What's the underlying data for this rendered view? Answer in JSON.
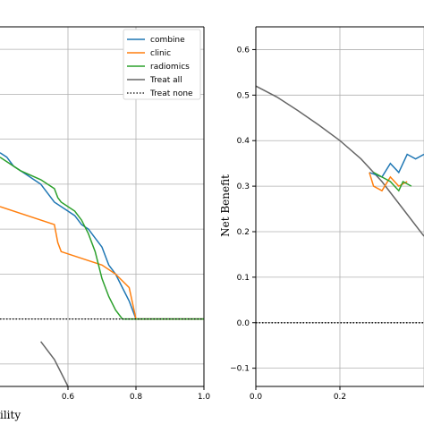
{
  "chart_data": [
    {
      "type": "line",
      "xlabel_visible": "ility",
      "ylabel": "",
      "xlim": [
        0.4,
        1.0
      ],
      "ylim": [
        -0.15,
        0.65
      ],
      "xticks": [
        "0.6",
        "0.8",
        "1.0"
      ],
      "grid": true,
      "legend_position": "top-right",
      "series": [
        {
          "name": "combine",
          "color": "#1f77b4",
          "x": [
            0.4,
            0.42,
            0.44,
            0.46,
            0.48,
            0.5,
            0.52,
            0.54,
            0.56,
            0.58,
            0.6,
            0.62,
            0.64,
            0.66,
            0.68,
            0.7,
            0.72,
            0.74,
            0.76,
            0.78,
            0.8,
            1.0
          ],
          "y": [
            0.37,
            0.36,
            0.34,
            0.33,
            0.32,
            0.31,
            0.3,
            0.28,
            0.26,
            0.25,
            0.24,
            0.23,
            0.21,
            0.2,
            0.18,
            0.16,
            0.12,
            0.1,
            0.07,
            0.04,
            0.0,
            0.0
          ]
        },
        {
          "name": "clinic",
          "color": "#ff7f0e",
          "x": [
            0.4,
            0.56,
            0.57,
            0.58,
            0.62,
            0.66,
            0.7,
            0.74,
            0.78,
            0.8,
            1.0
          ],
          "y": [
            0.25,
            0.21,
            0.17,
            0.15,
            0.14,
            0.13,
            0.12,
            0.1,
            0.07,
            0.0,
            0.0
          ]
        },
        {
          "name": "radiomics",
          "color": "#2ca02c",
          "x": [
            0.4,
            0.46,
            0.52,
            0.56,
            0.57,
            0.58,
            0.6,
            0.62,
            0.64,
            0.66,
            0.68,
            0.7,
            0.72,
            0.74,
            0.76,
            0.78,
            1.0
          ],
          "y": [
            0.36,
            0.33,
            0.31,
            0.29,
            0.27,
            0.26,
            0.25,
            0.24,
            0.22,
            0.19,
            0.15,
            0.09,
            0.05,
            0.02,
            0.0,
            0.0,
            0.0
          ]
        },
        {
          "name": "Treat all",
          "color": "#666666",
          "x": [
            0.52,
            0.56,
            0.58,
            0.6
          ],
          "y": [
            -0.05,
            -0.09,
            -0.12,
            -0.15
          ]
        },
        {
          "name": "Treat none",
          "color": "#000000",
          "style": "dotted",
          "x": [
            0.4,
            1.0
          ],
          "y": [
            0.0,
            0.0
          ]
        }
      ]
    },
    {
      "type": "line",
      "xlabel": "",
      "ylabel": "Net Benefit",
      "xlim": [
        0.0,
        0.4
      ],
      "ylim": [
        -0.14,
        0.65
      ],
      "xticks": [
        "0.0",
        "0.2"
      ],
      "yticks": [
        "−0.1",
        "0.0",
        "0.1",
        "0.2",
        "0.3",
        "0.4",
        "0.5",
        "0.6"
      ],
      "grid": true,
      "series": [
        {
          "name": "Treat all",
          "color": "#666666",
          "x": [
            0.0,
            0.05,
            0.1,
            0.15,
            0.2,
            0.25,
            0.3,
            0.35,
            0.4
          ],
          "y": [
            0.52,
            0.496,
            0.466,
            0.434,
            0.4,
            0.36,
            0.31,
            0.25,
            0.19
          ]
        },
        {
          "name": "combine",
          "color": "#1f77b4",
          "x": [
            0.27,
            0.3,
            0.32,
            0.34,
            0.36,
            0.38,
            0.4
          ],
          "y": [
            0.33,
            0.32,
            0.35,
            0.33,
            0.37,
            0.36,
            0.37
          ]
        },
        {
          "name": "clinic",
          "color": "#ff7f0e",
          "x": [
            0.27,
            0.28,
            0.3,
            0.32,
            0.34,
            0.36
          ],
          "y": [
            0.33,
            0.3,
            0.29,
            0.32,
            0.3,
            0.31
          ]
        },
        {
          "name": "radiomics",
          "color": "#2ca02c",
          "x": [
            0.28,
            0.3,
            0.32,
            0.34,
            0.35,
            0.37
          ],
          "y": [
            0.33,
            0.32,
            0.31,
            0.29,
            0.31,
            0.3
          ]
        },
        {
          "name": "Treat none",
          "color": "#000000",
          "style": "dotted",
          "x": [
            0.0,
            0.4
          ],
          "y": [
            0.0,
            0.0
          ]
        }
      ]
    }
  ]
}
